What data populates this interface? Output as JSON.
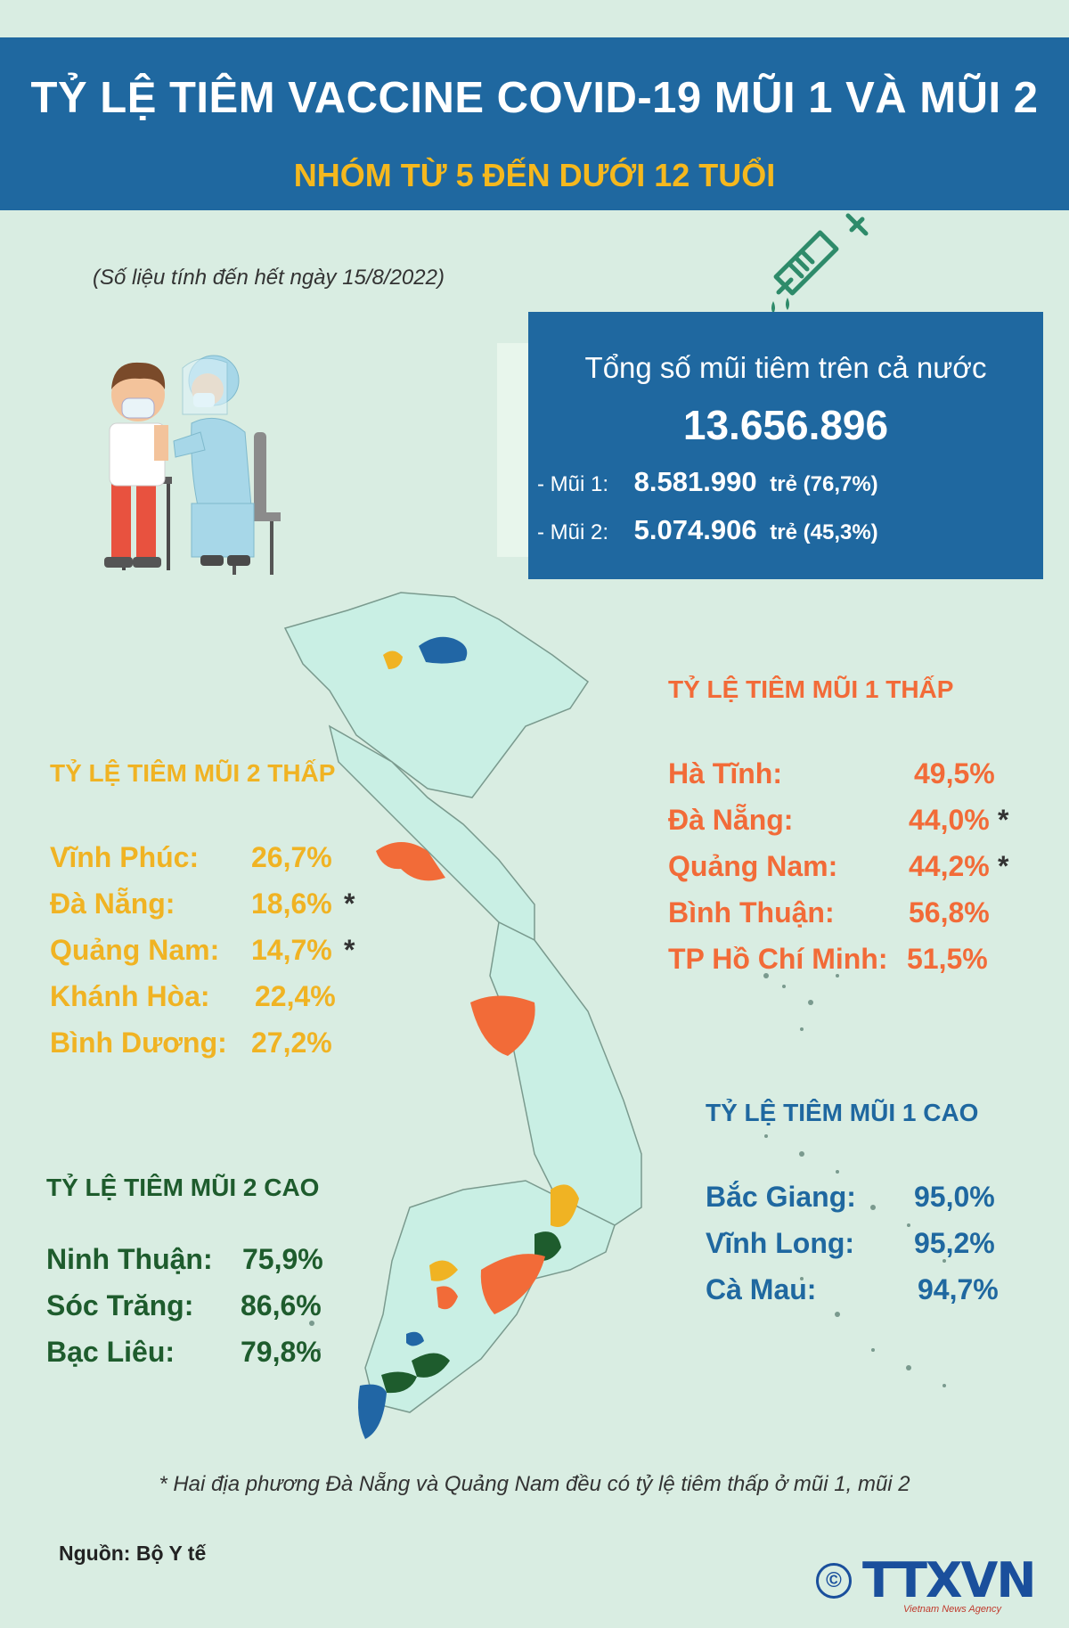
{
  "header": {
    "title": "TỶ LỆ TIÊM VACCINE COVID-19 MŨI 1 VÀ MŨI 2",
    "subtitle": "NHÓM TỪ 5 ĐẾN DƯỚI 12 TUỔI"
  },
  "date_note": "(Số liệu tính đến hết ngày 15/8/2022)",
  "summary": {
    "label": "Tổng số mũi tiêm trên cả nước",
    "total": "13.656.896",
    "dose1": {
      "key": "- Mũi 1:",
      "value": "8.581.990",
      "unit": "trẻ",
      "pct": "(76,7%)"
    },
    "dose2": {
      "key": "- Mũi 2:",
      "value": "5.074.906",
      "unit": "trẻ",
      "pct": "(45,3%)"
    }
  },
  "low_dose1": {
    "title": "TỶ LỆ TIÊM MŨI 1 THẤP",
    "items": [
      {
        "name": "Hà Tĩnh:",
        "value": "49,5%",
        "star": ""
      },
      {
        "name": "Đà Nẵng:",
        "value": "44,0%",
        "star": "*"
      },
      {
        "name": "Quảng Nam:",
        "value": "44,2%",
        "star": "*"
      },
      {
        "name": "Bình Thuận:",
        "value": "56,8%",
        "star": ""
      },
      {
        "name": "TP Hồ Chí Minh:",
        "value": "51,5%",
        "star": ""
      }
    ]
  },
  "low_dose2": {
    "title": "TỶ LỆ TIÊM MŨI 2 THẤP",
    "items": [
      {
        "name": "Vĩnh Phúc:",
        "value": "26,7%",
        "star": ""
      },
      {
        "name": "Đà Nẵng:",
        "value": "18,6%",
        "star": "*"
      },
      {
        "name": "Quảng Nam:",
        "value": "14,7%",
        "star": "*"
      },
      {
        "name": "Khánh Hòa:",
        "value": "22,4%",
        "star": ""
      },
      {
        "name": "Bình Dương:",
        "value": "27,2%",
        "star": ""
      }
    ]
  },
  "high_dose1": {
    "title": "TỶ LỆ TIÊM MŨI 1 CAO",
    "items": [
      {
        "name": "Bắc Giang:",
        "value": "95,0%"
      },
      {
        "name": "Vĩnh Long:",
        "value": "95,2%"
      },
      {
        "name": "Cà Mau:",
        "value": "94,7%"
      }
    ]
  },
  "high_dose2": {
    "title": "TỶ LỆ TIÊM MŨI 2 CAO",
    "items": [
      {
        "name": "Ninh Thuận:",
        "value": "75,9%"
      },
      {
        "name": "Sóc Trăng:",
        "value": "86,6%"
      },
      {
        "name": "Bạc Liêu:",
        "value": "79,8%"
      }
    ]
  },
  "footnote": "* Hai địa phương Đà Nẵng và Quảng Nam đều có tỷ lệ tiêm thấp ở mũi 1, mũi 2",
  "source": "Nguồn: Bộ Y tế",
  "logo": {
    "copyright": "©",
    "brand": "TTXVN",
    "agency": "Vietnam News Agency"
  },
  "colors": {
    "header_bg": "#1f68a0",
    "subtitle": "#f5b81e",
    "low_dose1": "#f26b38",
    "low_dose2": "#f0b323",
    "high_dose1": "#1f68a0",
    "high_dose2": "#1e5c2d",
    "map_fill": "#c9efe4"
  }
}
